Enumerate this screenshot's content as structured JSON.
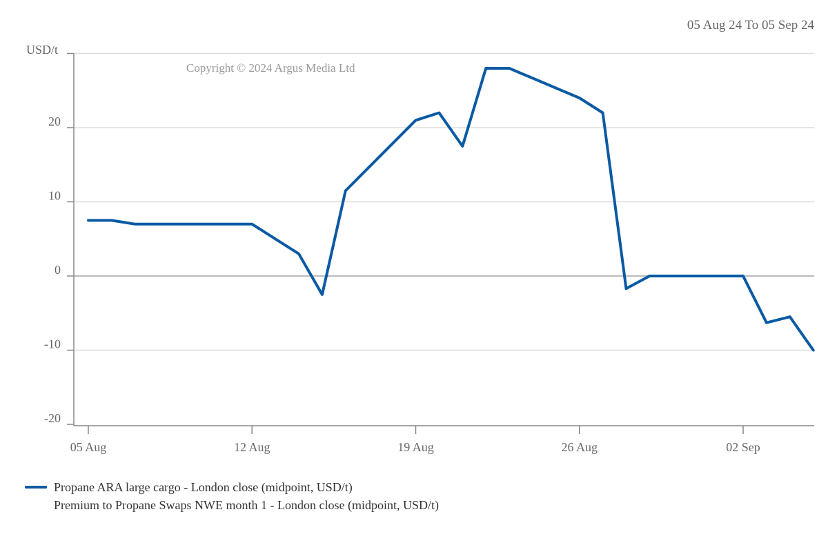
{
  "header": {
    "date_range": "05 Aug 24 To 05 Sep 24"
  },
  "copyright": "Copyright © 2024 Argus Media Ltd",
  "colors": {
    "series": "#0a5aa4",
    "grid": "#dddddd",
    "axis": "#888888",
    "text": "#666666"
  },
  "chart_data": {
    "type": "line",
    "ylabel": "USD/t",
    "ylim": [
      -20,
      30
    ],
    "yticks": [
      -20,
      -10,
      0,
      10,
      20
    ],
    "xlim": [
      "2024-08-05",
      "2024-09-05"
    ],
    "xticks": [
      {
        "date": "2024-08-05",
        "label": "05 Aug"
      },
      {
        "date": "2024-08-12",
        "label": "12 Aug"
      },
      {
        "date": "2024-08-19",
        "label": "19 Aug"
      },
      {
        "date": "2024-08-26",
        "label": "26 Aug"
      },
      {
        "date": "2024-09-02",
        "label": "02 Sep"
      }
    ],
    "grid": true,
    "legend_position": "bottom-left",
    "series": [
      {
        "name": "Propane ARA large cargo - London close (midpoint, USD/t)",
        "name_line2": "Premium to Propane Swaps NWE month 1 - London close (midpoint, USD/t)",
        "x": [
          "2024-08-05",
          "2024-08-06",
          "2024-08-07",
          "2024-08-08",
          "2024-08-09",
          "2024-08-12",
          "2024-08-13",
          "2024-08-14",
          "2024-08-15",
          "2024-08-16",
          "2024-08-19",
          "2024-08-20",
          "2024-08-21",
          "2024-08-22",
          "2024-08-23",
          "2024-08-26",
          "2024-08-27",
          "2024-08-28",
          "2024-08-29",
          "2024-08-30",
          "2024-09-02",
          "2024-09-03",
          "2024-09-04",
          "2024-09-05"
        ],
        "y": [
          7.5,
          7.5,
          7.0,
          7.0,
          7.0,
          7.0,
          5.0,
          3.0,
          -2.5,
          11.5,
          21.0,
          22.0,
          17.5,
          28.0,
          28.0,
          24.0,
          22.0,
          -1.7,
          0.0,
          0.0,
          0.0,
          -6.3,
          -5.5,
          -10.0
        ]
      }
    ]
  }
}
